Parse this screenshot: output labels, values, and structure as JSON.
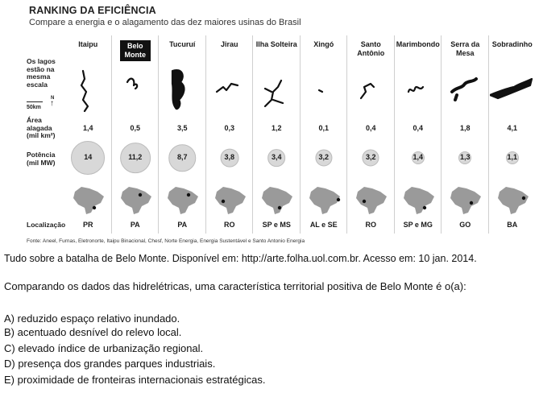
{
  "figure": {
    "title": "RANKING DA EFICIÊNCIA",
    "subtitle": "Compare a energia e o alagamento das dez maiores usinas do Brasil",
    "row_labels": {
      "lakes": "Os lagos estão na mesma escala",
      "scale": "50km",
      "north": "N",
      "area": "Área alagada (mil km²)",
      "power": "Potência (mil MW)",
      "location": "Localização"
    },
    "plants": [
      {
        "name": "Itaipu",
        "area": "1,4",
        "power": "14",
        "loc": "PR",
        "highlight": false
      },
      {
        "name": "Belo Monte",
        "area": "0,5",
        "power": "11,2",
        "loc": "PA",
        "highlight": true
      },
      {
        "name": "Tucuruí",
        "area": "3,5",
        "power": "8,7",
        "loc": "PA",
        "highlight": false
      },
      {
        "name": "Jirau",
        "area": "0,3",
        "power": "3,8",
        "loc": "RO",
        "highlight": false
      },
      {
        "name": "Ilha Solteira",
        "area": "1,2",
        "power": "3,4",
        "loc": "SP e MS",
        "highlight": false
      },
      {
        "name": "Xingó",
        "area": "0,1",
        "power": "3,2",
        "loc": "AL e SE",
        "highlight": false
      },
      {
        "name": "Santo Antônio",
        "area": "0,4",
        "power": "3,2",
        "loc": "RO",
        "highlight": false
      },
      {
        "name": "Marimbondo",
        "area": "0,4",
        "power": "1,4",
        "loc": "SP e MG",
        "highlight": false
      },
      {
        "name": "Serra da Mesa",
        "area": "1,8",
        "power": "1,3",
        "loc": "GO",
        "highlight": false
      },
      {
        "name": "Sobradinho",
        "area": "4,1",
        "power": "1,1",
        "loc": "BA",
        "highlight": false
      }
    ],
    "source": "Fonte: Aneel, Furnas, Eletronorte, Itaipu Binacional, Chesf, Norte Energia, Energia Sustentável e Santo Antonio Energia"
  },
  "citation": "Tudo sobre a batalha de Belo Monte. Disponível em: http://arte.folha.uol.com.br. Acesso em: 10 jan. 2014.",
  "question": "Comparando os dados das hidrelétricas, uma característica territorial positiva de Belo Monte é o(a):",
  "options": [
    "A) reduzido espaço relativo inundado.",
    "B) acentuado desnível do relevo local.",
    "C) elevado índice de urbanização regional.",
    "D) presença dos grandes parques industriais.",
    "E) proximidade de fronteiras internacionais estratégicas."
  ]
}
